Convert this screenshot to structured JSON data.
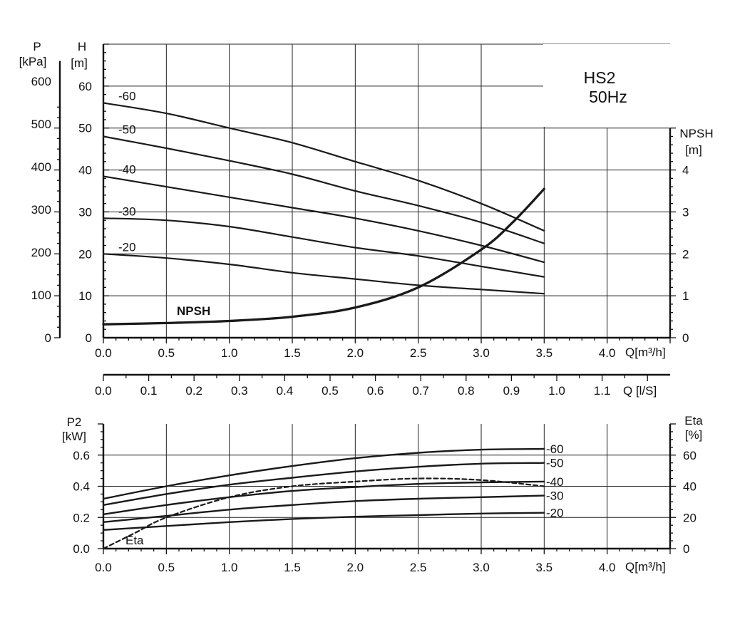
{
  "chart_data": [
    {
      "type": "line",
      "title": "HS2",
      "subtitle": "50Hz",
      "x_unit_label": "Q[m³/h]",
      "x_ticks": [
        "0.0",
        "0.5",
        "1.0",
        "1.5",
        "2.0",
        "2.5",
        "3.0",
        "3.5",
        "4.0"
      ],
      "xlim": [
        0,
        4.5
      ],
      "left_axis_p": {
        "label_line1": "P",
        "label_line2": "[kPa]",
        "ticks": [
          "0",
          "100",
          "200",
          "300",
          "400",
          "500",
          "600"
        ]
      },
      "left_axis_h": {
        "label_line1": "H",
        "label_line2": "[m]",
        "ticks": [
          "0",
          "10",
          "20",
          "30",
          "40",
          "50",
          "60"
        ],
        "ylim": [
          0,
          70
        ]
      },
      "right_axis_npsh": {
        "label_line1": "NPSH",
        "label_line2": "[m]",
        "ticks": [
          "0",
          "1",
          "2",
          "3",
          "4"
        ]
      },
      "grid": true,
      "series": [
        {
          "name": "-60",
          "x": [
            0,
            0.5,
            1.0,
            1.5,
            2.0,
            2.5,
            3.0,
            3.5
          ],
          "y": [
            56,
            53.5,
            50,
            46.5,
            42,
            37.5,
            32,
            25.5
          ]
        },
        {
          "name": "-50",
          "x": [
            0,
            0.5,
            1.0,
            1.5,
            2.0,
            2.5,
            3.0,
            3.5
          ],
          "y": [
            48,
            45.2,
            42.2,
            39,
            35,
            31.5,
            27.5,
            22.5
          ]
        },
        {
          "name": "-40",
          "x": [
            0,
            0.5,
            1.0,
            1.5,
            2.0,
            2.5,
            3.0,
            3.5
          ],
          "y": [
            38.5,
            36,
            33.5,
            31,
            28.5,
            25.5,
            22,
            18
          ]
        },
        {
          "name": "-30",
          "x": [
            0,
            0.5,
            1.0,
            1.5,
            2.0,
            2.5,
            3.0,
            3.5
          ],
          "y": [
            28.5,
            28,
            26.5,
            24,
            21.5,
            19.5,
            17,
            14.5
          ]
        },
        {
          "name": "-20",
          "x": [
            0,
            0.5,
            1.0,
            1.5,
            2.0,
            2.5,
            3.0,
            3.5
          ],
          "y": [
            20,
            19,
            17.5,
            15.5,
            14,
            12.5,
            11.5,
            10.5
          ]
        },
        {
          "name": "NPSH",
          "x": [
            0,
            0.5,
            1.0,
            1.5,
            2.0,
            2.5,
            3.0,
            3.25,
            3.5
          ],
          "y": [
            3.2,
            3.5,
            4,
            5,
            7.2,
            12,
            21,
            27.5,
            35.5
          ]
        }
      ]
    },
    {
      "type": "axis",
      "x_unit_label": "Q [l/S]",
      "x_ticks": [
        "0.0",
        "0.1",
        "0.2",
        "0.3",
        "0.4",
        "0.5",
        "0.6",
        "0.7",
        "0.8",
        "0.9",
        "1.0",
        "1.1"
      ]
    },
    {
      "type": "line",
      "x_unit_label": "Q[m³/h]",
      "x_ticks": [
        "0.0",
        "0.5",
        "1.0",
        "1.5",
        "2.0",
        "2.5",
        "3.0",
        "3.5",
        "4.0"
      ],
      "xlim": [
        0,
        4.5
      ],
      "left_axis": {
        "label_line1": "P2",
        "label_line2": "[kW]",
        "ticks": [
          "0.0",
          "0.2",
          "0.4",
          "0.6"
        ],
        "ylim": [
          0,
          0.8
        ]
      },
      "right_axis": {
        "label_line1": "Eta",
        "label_line2": "[%]",
        "ticks": [
          "0",
          "20",
          "40",
          "60"
        ]
      },
      "grid": true,
      "series": [
        {
          "name": "-60",
          "x": [
            0,
            0.5,
            1.0,
            1.5,
            2.0,
            2.5,
            3.0,
            3.5
          ],
          "y": [
            0.32,
            0.4,
            0.47,
            0.53,
            0.58,
            0.615,
            0.635,
            0.64
          ]
        },
        {
          "name": "-50",
          "x": [
            0,
            0.5,
            1.0,
            1.5,
            2.0,
            2.5,
            3.0,
            3.5
          ],
          "y": [
            0.28,
            0.35,
            0.41,
            0.455,
            0.495,
            0.525,
            0.545,
            0.55
          ]
        },
        {
          "name": "-40",
          "x": [
            0,
            0.5,
            1.0,
            1.5,
            2.0,
            2.5,
            3.0,
            3.5
          ],
          "y": [
            0.22,
            0.28,
            0.33,
            0.37,
            0.395,
            0.415,
            0.425,
            0.43
          ]
        },
        {
          "name": "-30",
          "x": [
            0,
            0.5,
            1.0,
            1.5,
            2.0,
            2.5,
            3.0,
            3.5
          ],
          "y": [
            0.17,
            0.21,
            0.25,
            0.28,
            0.305,
            0.32,
            0.33,
            0.34
          ]
        },
        {
          "name": "-20",
          "x": [
            0,
            0.5,
            1.0,
            1.5,
            2.0,
            2.5,
            3.0,
            3.5
          ],
          "y": [
            0.12,
            0.145,
            0.17,
            0.19,
            0.205,
            0.215,
            0.225,
            0.23
          ]
        },
        {
          "name": "Eta",
          "dashed": true,
          "x": [
            0,
            0.25,
            0.5,
            1.0,
            1.5,
            2.0,
            2.5,
            3.0,
            3.5
          ],
          "y": [
            0.0,
            0.1,
            0.2,
            0.33,
            0.4,
            0.43,
            0.45,
            0.44,
            0.4
          ]
        }
      ]
    }
  ]
}
